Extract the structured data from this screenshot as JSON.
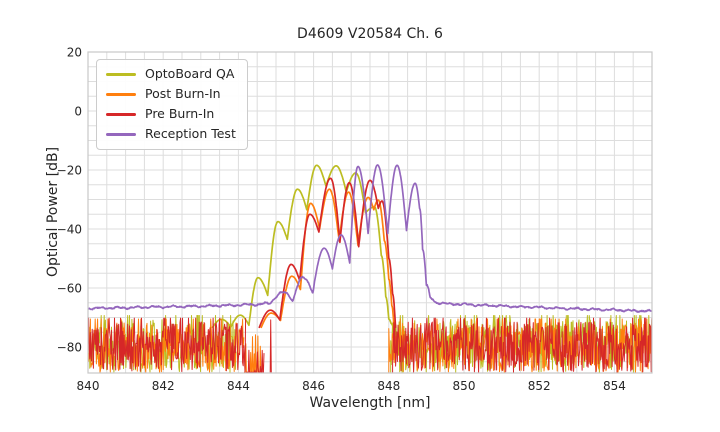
{
  "chart_data": {
    "type": "line",
    "title": "D4609 V20584 Ch. 6",
    "xlabel": "Wavelength [nm]",
    "ylabel": "Optical Power [dB]",
    "xlim": [
      840,
      855
    ],
    "ylim": [
      -88.8,
      20
    ],
    "xticks": [
      840,
      842,
      844,
      846,
      848,
      850,
      852,
      854
    ],
    "yticks": [
      20,
      0,
      -20,
      -40,
      -60,
      -80
    ],
    "grid": {
      "x_step": 0.5,
      "y_step": 5,
      "color": "#dddddd"
    },
    "axes_edge_color": "#c8c8c8",
    "text_color": "#262626",
    "background_color": "#ffffff",
    "legend_position": "upper left",
    "series": [
      {
        "name": "OptoBoard QA",
        "color": "#bcbd22",
        "points": [
          [
            843.3,
            -73.5
          ],
          [
            843.55,
            -70.6
          ],
          [
            843.8,
            -73.2
          ],
          [
            844.05,
            -69.2
          ],
          [
            844.28,
            -72.6
          ],
          [
            844.52,
            -56.5
          ],
          [
            844.78,
            -62.5
          ],
          [
            845.05,
            -37.5
          ],
          [
            845.3,
            -43.5
          ],
          [
            845.57,
            -26.5
          ],
          [
            845.82,
            -33.5
          ],
          [
            846.08,
            -18.4
          ],
          [
            846.33,
            -25.5
          ],
          [
            846.6,
            -18.6
          ],
          [
            846.87,
            -27.5
          ],
          [
            847.12,
            -21.0
          ],
          [
            847.38,
            -34.5
          ],
          [
            847.62,
            -32.5
          ],
          [
            847.8,
            -49.0
          ],
          [
            847.92,
            -63.0
          ],
          [
            848.0,
            -70.5
          ],
          [
            848.06,
            -72.0
          ],
          [
            848.12,
            -73.5
          ]
        ],
        "noise": {
          "top": -70.6,
          "bottom": -88.6,
          "dense": [
            [
              840,
              843.95
            ],
            [
              848.05,
              855
            ]
          ],
          "sparse": [],
          "spikes": []
        }
      },
      {
        "name": "Post Burn-In",
        "color": "#ff7f0e",
        "points": [
          [
            844.6,
            -73.5
          ],
          [
            844.87,
            -68.5
          ],
          [
            845.12,
            -71.0
          ],
          [
            845.42,
            -56.0
          ],
          [
            845.65,
            -60.5
          ],
          [
            845.92,
            -31.3
          ],
          [
            846.16,
            -40.0
          ],
          [
            846.42,
            -26.5
          ],
          [
            846.68,
            -44.0
          ],
          [
            846.93,
            -27.5
          ],
          [
            847.18,
            -45.5
          ],
          [
            847.45,
            -29.3
          ],
          [
            847.6,
            -33.5
          ],
          [
            847.72,
            -30.2
          ],
          [
            847.88,
            -44.0
          ],
          [
            848.0,
            -57.0
          ],
          [
            848.08,
            -66.0
          ],
          [
            848.14,
            -73.5
          ]
        ],
        "noise": {
          "top": -71.8,
          "bottom": -88.6,
          "dense": [
            [
              840,
              844.15
            ],
            [
              848.0,
              855
            ]
          ],
          "sparse": [
            [
              844.15,
              844.6
            ]
          ],
          "spikes": []
        }
      },
      {
        "name": "Pre Burn-In",
        "color": "#d62728",
        "points": [
          [
            844.55,
            -73.5
          ],
          [
            844.85,
            -67.5
          ],
          [
            845.1,
            -70.8
          ],
          [
            845.4,
            -52.0
          ],
          [
            845.63,
            -57.5
          ],
          [
            845.9,
            -35.0
          ],
          [
            846.14,
            -41.0
          ],
          [
            846.45,
            -22.8
          ],
          [
            846.7,
            -44.5
          ],
          [
            846.95,
            -24.3
          ],
          [
            847.2,
            -46.0
          ],
          [
            847.5,
            -23.5
          ],
          [
            847.72,
            -33.0
          ],
          [
            847.82,
            -30.5
          ],
          [
            848.0,
            -50.0
          ],
          [
            848.1,
            -62.0
          ],
          [
            848.18,
            -73.5
          ]
        ],
        "noise": {
          "top": -71.5,
          "bottom": -88.6,
          "dense": [
            [
              840,
              844.2
            ],
            [
              848.1,
              855
            ]
          ],
          "sparse": [
            [
              844.2,
              844.68
            ]
          ],
          "spikes": [
            [
              844.86,
              -70.8
            ]
          ]
        }
      },
      {
        "name": "Reception Test",
        "color": "#9467bd",
        "points": [
          [
            840.0,
            -66.9
          ],
          [
            841.0,
            -66.7
          ],
          [
            842.0,
            -66.4
          ],
          [
            843.0,
            -66.2
          ],
          [
            843.8,
            -65.9
          ],
          [
            844.5,
            -65.6
          ],
          [
            844.85,
            -65.2
          ],
          [
            845.2,
            -61.5
          ],
          [
            845.45,
            -64.3
          ],
          [
            845.72,
            -56.5
          ],
          [
            845.98,
            -61.5
          ],
          [
            846.28,
            -46.5
          ],
          [
            846.5,
            -53.5
          ],
          [
            846.73,
            -42.0
          ],
          [
            846.96,
            -51.5
          ],
          [
            847.18,
            -18.8
          ],
          [
            847.45,
            -41.5
          ],
          [
            847.7,
            -18.3
          ],
          [
            847.97,
            -41.5
          ],
          [
            848.22,
            -18.4
          ],
          [
            848.47,
            -40.5
          ],
          [
            848.7,
            -24.5
          ],
          [
            848.82,
            -33.0
          ],
          [
            848.9,
            -47.0
          ],
          [
            849.0,
            -59.0
          ],
          [
            849.1,
            -63.5
          ],
          [
            849.25,
            -65.0
          ],
          [
            849.6,
            -65.4
          ],
          [
            850.5,
            -65.9
          ],
          [
            851.5,
            -66.4
          ],
          [
            852.5,
            -66.9
          ],
          [
            853.5,
            -67.3
          ],
          [
            854.5,
            -67.7
          ],
          [
            855.0,
            -67.9
          ]
        ],
        "ripple": {
          "below": -56,
          "amp": 0.3
        }
      }
    ]
  }
}
